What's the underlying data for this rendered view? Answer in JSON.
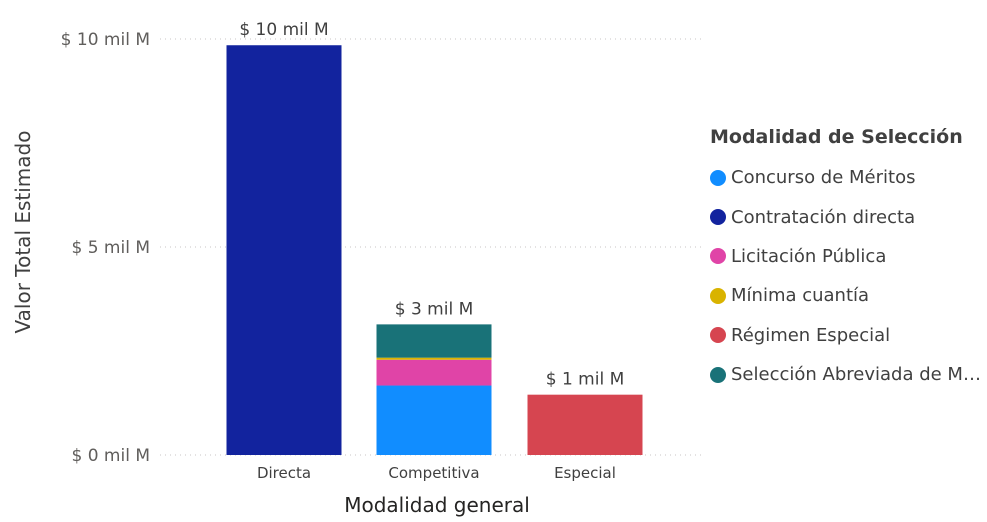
{
  "chart_data": {
    "type": "bar",
    "stacked": true,
    "title": "",
    "xlabel": "Modalidad general",
    "ylabel": "Valor Total Estimado",
    "categories": [
      "Directa",
      "Competitiva",
      "Especial"
    ],
    "ylim": [
      0,
      10
    ],
    "yticks": [
      {
        "value": 0,
        "label": "$ 0 mil M"
      },
      {
        "value": 5,
        "label": "$ 5 mil M"
      },
      {
        "value": 10,
        "label": "$ 10 mil M"
      }
    ],
    "grid": true,
    "legend_position": "right",
    "legend_title": "Modalidad de Selección",
    "series": [
      {
        "name": "Concurso de Méritos",
        "color": "#118DFF",
        "values": [
          0,
          1.67,
          0
        ]
      },
      {
        "name": "Contratación directa",
        "color": "#12239E",
        "values": [
          9.85,
          0,
          0
        ]
      },
      {
        "name": "Licitación Pública",
        "color": "#E044A7",
        "values": [
          0,
          0.62,
          0
        ]
      },
      {
        "name": "Mínima cuantía",
        "color": "#D9B300",
        "values": [
          0,
          0.05,
          0
        ]
      },
      {
        "name": "Régimen Especial",
        "color": "#D64550",
        "values": [
          0,
          0,
          1.45
        ]
      },
      {
        "name": "Selección Abreviada de M…",
        "color": "#197278",
        "values": [
          0,
          0.8,
          0
        ]
      }
    ],
    "total_labels": [
      "$ 10 mil M",
      "$ 3 mil M",
      "$ 1 mil M"
    ]
  }
}
